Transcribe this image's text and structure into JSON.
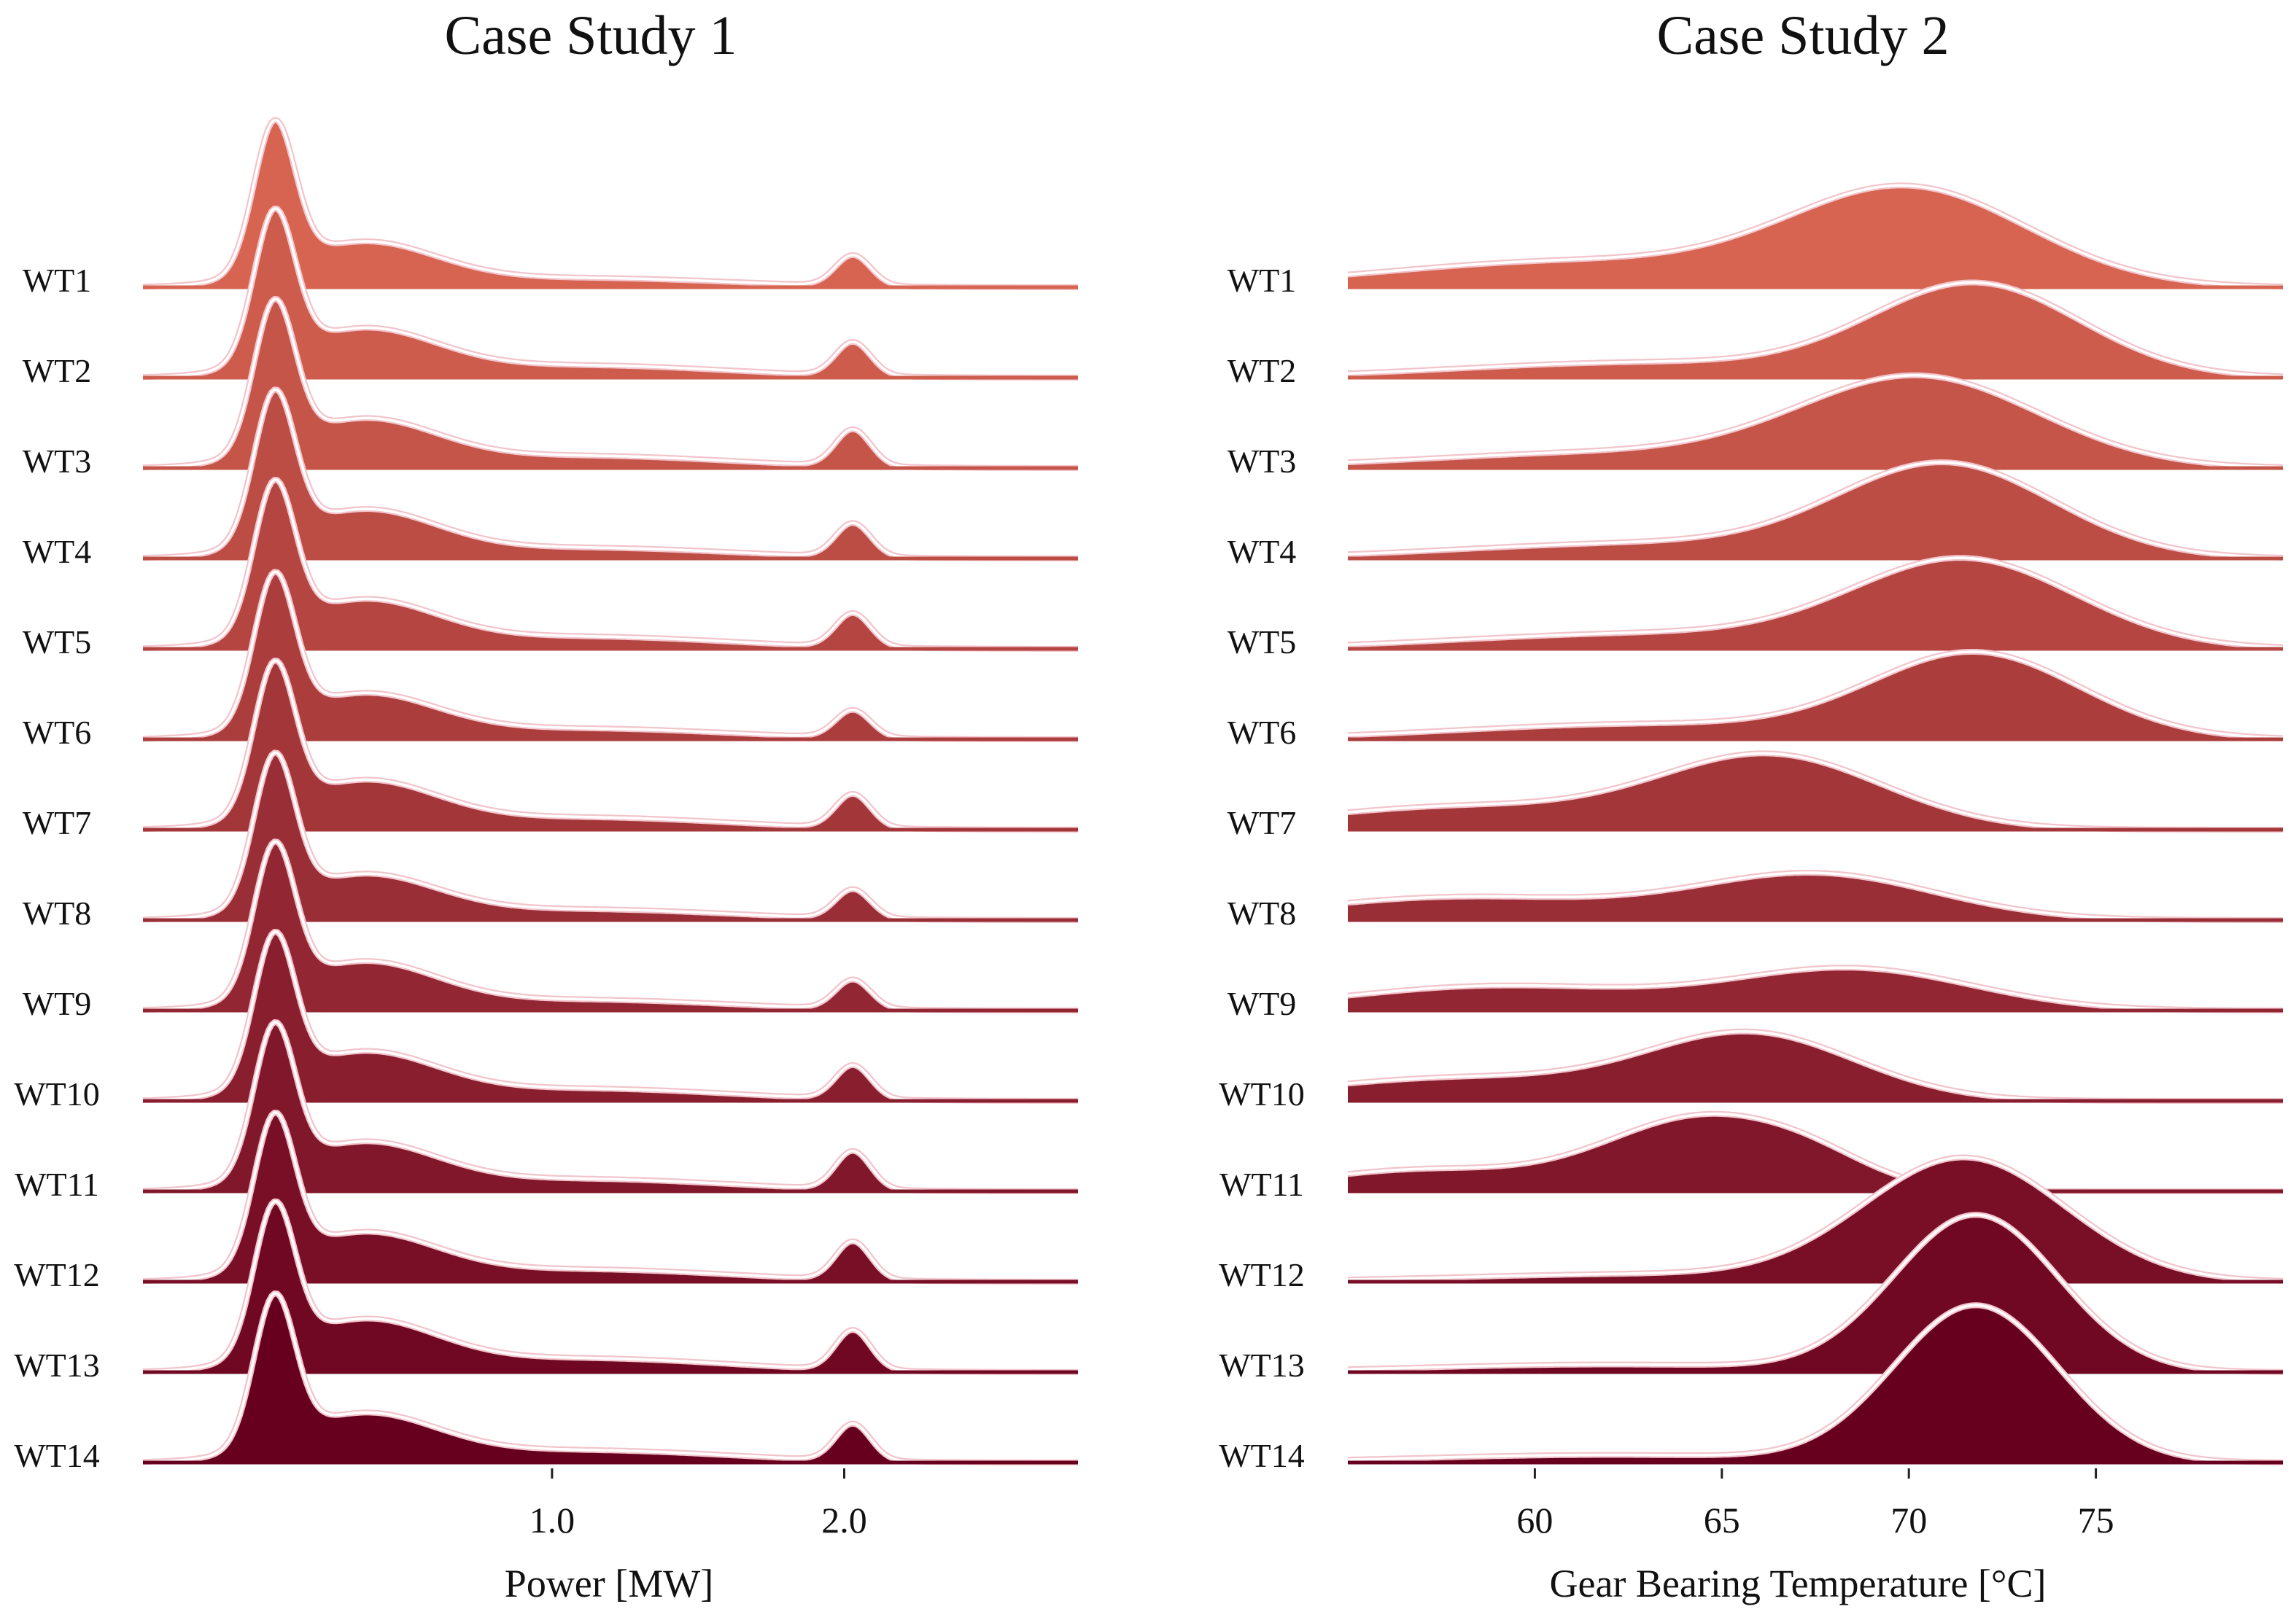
{
  "chart_data": [
    {
      "type": "ridgeline",
      "title": "Case Study 1",
      "xlabel": "Power [MW]",
      "xlim": [
        -0.4,
        2.8
      ],
      "xticks": [
        1.0,
        2.0
      ],
      "xtick_labels": [
        "1.0",
        "2.0"
      ],
      "categories": [
        "WT1",
        "WT2",
        "WT3",
        "WT4",
        "WT5",
        "WT6",
        "WT7",
        "WT8",
        "WT9",
        "WT10",
        "WT11",
        "WT12",
        "WT13",
        "WT14"
      ],
      "series": [
        {
          "name": "WT1",
          "components": [
            {
              "mu": 0.05,
              "sigma": 0.07,
              "w": 0.95
            },
            {
              "mu": 0.35,
              "sigma": 0.25,
              "w": 0.28
            },
            {
              "mu": 1.1,
              "sigma": 0.5,
              "w": 0.06
            },
            {
              "mu": 2.03,
              "sigma": 0.06,
              "w": 0.2
            }
          ]
        },
        {
          "name": "WT2",
          "components": [
            {
              "mu": 0.05,
              "sigma": 0.07,
              "w": 0.95
            },
            {
              "mu": 0.35,
              "sigma": 0.25,
              "w": 0.3
            },
            {
              "mu": 1.1,
              "sigma": 0.5,
              "w": 0.08
            },
            {
              "mu": 2.03,
              "sigma": 0.06,
              "w": 0.22
            }
          ]
        },
        {
          "name": "WT3",
          "components": [
            {
              "mu": 0.05,
              "sigma": 0.07,
              "w": 0.95
            },
            {
              "mu": 0.35,
              "sigma": 0.25,
              "w": 0.3
            },
            {
              "mu": 1.1,
              "sigma": 0.5,
              "w": 0.08
            },
            {
              "mu": 2.03,
              "sigma": 0.06,
              "w": 0.24
            }
          ]
        },
        {
          "name": "WT4",
          "components": [
            {
              "mu": 0.05,
              "sigma": 0.07,
              "w": 0.95
            },
            {
              "mu": 0.35,
              "sigma": 0.25,
              "w": 0.3
            },
            {
              "mu": 1.1,
              "sigma": 0.5,
              "w": 0.07
            },
            {
              "mu": 2.03,
              "sigma": 0.06,
              "w": 0.22
            }
          ]
        },
        {
          "name": "WT5",
          "components": [
            {
              "mu": 0.05,
              "sigma": 0.07,
              "w": 0.95
            },
            {
              "mu": 0.35,
              "sigma": 0.25,
              "w": 0.3
            },
            {
              "mu": 1.1,
              "sigma": 0.5,
              "w": 0.08
            },
            {
              "mu": 2.03,
              "sigma": 0.06,
              "w": 0.22
            }
          ]
        },
        {
          "name": "WT6",
          "components": [
            {
              "mu": 0.05,
              "sigma": 0.07,
              "w": 0.95
            },
            {
              "mu": 0.35,
              "sigma": 0.25,
              "w": 0.28
            },
            {
              "mu": 1.1,
              "sigma": 0.5,
              "w": 0.07
            },
            {
              "mu": 2.03,
              "sigma": 0.06,
              "w": 0.18
            }
          ]
        },
        {
          "name": "WT7",
          "components": [
            {
              "mu": 0.05,
              "sigma": 0.07,
              "w": 0.95
            },
            {
              "mu": 0.35,
              "sigma": 0.25,
              "w": 0.3
            },
            {
              "mu": 1.1,
              "sigma": 0.5,
              "w": 0.08
            },
            {
              "mu": 2.03,
              "sigma": 0.06,
              "w": 0.22
            }
          ]
        },
        {
          "name": "WT8",
          "components": [
            {
              "mu": 0.05,
              "sigma": 0.07,
              "w": 0.95
            },
            {
              "mu": 0.35,
              "sigma": 0.25,
              "w": 0.28
            },
            {
              "mu": 1.1,
              "sigma": 0.5,
              "w": 0.07
            },
            {
              "mu": 2.03,
              "sigma": 0.06,
              "w": 0.19
            }
          ]
        },
        {
          "name": "WT9",
          "components": [
            {
              "mu": 0.05,
              "sigma": 0.07,
              "w": 0.95
            },
            {
              "mu": 0.35,
              "sigma": 0.25,
              "w": 0.3
            },
            {
              "mu": 1.1,
              "sigma": 0.5,
              "w": 0.07
            },
            {
              "mu": 2.03,
              "sigma": 0.06,
              "w": 0.19
            }
          ]
        },
        {
          "name": "WT10",
          "components": [
            {
              "mu": 0.05,
              "sigma": 0.07,
              "w": 0.95
            },
            {
              "mu": 0.35,
              "sigma": 0.25,
              "w": 0.3
            },
            {
              "mu": 1.1,
              "sigma": 0.5,
              "w": 0.08
            },
            {
              "mu": 2.03,
              "sigma": 0.06,
              "w": 0.22
            }
          ]
        },
        {
          "name": "WT11",
          "components": [
            {
              "mu": 0.05,
              "sigma": 0.07,
              "w": 0.95
            },
            {
              "mu": 0.35,
              "sigma": 0.25,
              "w": 0.3
            },
            {
              "mu": 1.1,
              "sigma": 0.5,
              "w": 0.08
            },
            {
              "mu": 2.03,
              "sigma": 0.06,
              "w": 0.25
            }
          ]
        },
        {
          "name": "WT12",
          "components": [
            {
              "mu": 0.05,
              "sigma": 0.07,
              "w": 0.95
            },
            {
              "mu": 0.35,
              "sigma": 0.25,
              "w": 0.3
            },
            {
              "mu": 1.1,
              "sigma": 0.5,
              "w": 0.08
            },
            {
              "mu": 2.03,
              "sigma": 0.06,
              "w": 0.25
            }
          ]
        },
        {
          "name": "WT13",
          "components": [
            {
              "mu": 0.05,
              "sigma": 0.07,
              "w": 0.95
            },
            {
              "mu": 0.35,
              "sigma": 0.25,
              "w": 0.32
            },
            {
              "mu": 1.1,
              "sigma": 0.5,
              "w": 0.09
            },
            {
              "mu": 2.03,
              "sigma": 0.06,
              "w": 0.26
            }
          ]
        },
        {
          "name": "WT14",
          "components": [
            {
              "mu": 0.05,
              "sigma": 0.07,
              "w": 0.95
            },
            {
              "mu": 0.35,
              "sigma": 0.25,
              "w": 0.3
            },
            {
              "mu": 1.1,
              "sigma": 0.5,
              "w": 0.08
            },
            {
              "mu": 2.03,
              "sigma": 0.06,
              "w": 0.24
            }
          ]
        }
      ],
      "colors": {
        "top": "#d66450",
        "bottom": "#67001f",
        "outline": "#f2c4cc"
      }
    },
    {
      "type": "ridgeline",
      "title": "Case Study 2",
      "xlabel": "Gear Bearing Temperature [°C]",
      "xlim": [
        55,
        80
      ],
      "xticks": [
        60,
        65,
        70,
        75
      ],
      "xtick_labels": [
        "60",
        "65",
        "70",
        "75"
      ],
      "categories": [
        "WT1",
        "WT2",
        "WT3",
        "WT4",
        "WT5",
        "WT6",
        "WT7",
        "WT8",
        "WT9",
        "WT10",
        "WT11",
        "WT12",
        "WT13",
        "WT14"
      ],
      "series": [
        {
          "name": "WT1",
          "components": [
            {
              "mu": 70.0,
              "sigma": 3.2,
              "w": 0.63
            },
            {
              "mu": 61.0,
              "sigma": 5.0,
              "w": 0.17
            }
          ]
        },
        {
          "name": "WT2",
          "components": [
            {
              "mu": 71.8,
              "sigma": 2.8,
              "w": 0.6
            },
            {
              "mu": 63.0,
              "sigma": 5.0,
              "w": 0.1
            }
          ]
        },
        {
          "name": "WT3",
          "components": [
            {
              "mu": 70.3,
              "sigma": 3.2,
              "w": 0.58
            },
            {
              "mu": 62.0,
              "sigma": 5.0,
              "w": 0.1
            }
          ]
        },
        {
          "name": "WT4",
          "components": [
            {
              "mu": 71.0,
              "sigma": 2.9,
              "w": 0.6
            },
            {
              "mu": 63.0,
              "sigma": 5.0,
              "w": 0.1
            }
          ]
        },
        {
          "name": "WT5",
          "components": [
            {
              "mu": 71.5,
              "sigma": 3.0,
              "w": 0.57
            },
            {
              "mu": 63.0,
              "sigma": 5.0,
              "w": 0.1
            }
          ]
        },
        {
          "name": "WT6",
          "components": [
            {
              "mu": 71.8,
              "sigma": 2.8,
              "w": 0.55
            },
            {
              "mu": 63.0,
              "sigma": 5.0,
              "w": 0.1
            }
          ]
        },
        {
          "name": "WT7",
          "components": [
            {
              "mu": 66.3,
              "sigma": 3.0,
              "w": 0.48
            },
            {
              "mu": 58.0,
              "sigma": 4.0,
              "w": 0.15
            }
          ]
        },
        {
          "name": "WT8",
          "components": [
            {
              "mu": 67.5,
              "sigma": 3.2,
              "w": 0.3
            },
            {
              "mu": 58.0,
              "sigma": 4.0,
              "w": 0.15
            }
          ]
        },
        {
          "name": "WT9",
          "components": [
            {
              "mu": 68.5,
              "sigma": 3.2,
              "w": 0.27
            },
            {
              "mu": 59.0,
              "sigma": 4.0,
              "w": 0.16
            }
          ]
        },
        {
          "name": "WT10",
          "components": [
            {
              "mu": 65.8,
              "sigma": 2.8,
              "w": 0.43
            },
            {
              "mu": 58.0,
              "sigma": 4.0,
              "w": 0.15
            }
          ]
        },
        {
          "name": "WT11",
          "components": [
            {
              "mu": 64.5,
              "sigma": 2.6,
              "w": 0.48
            },
            {
              "mu": 67.5,
              "sigma": 1.6,
              "w": 0.1
            },
            {
              "mu": 57.0,
              "sigma": 3.0,
              "w": 0.14
            }
          ]
        },
        {
          "name": "WT12",
          "components": [
            {
              "mu": 71.5,
              "sigma": 2.7,
              "w": 0.8
            },
            {
              "mu": 63.0,
              "sigma": 5.0,
              "w": 0.05
            }
          ]
        },
        {
          "name": "WT13",
          "components": [
            {
              "mu": 71.8,
              "sigma": 2.2,
              "w": 1.02
            },
            {
              "mu": 62.0,
              "sigma": 5.0,
              "w": 0.05
            }
          ]
        },
        {
          "name": "WT14",
          "components": [
            {
              "mu": 71.8,
              "sigma": 2.2,
              "w": 1.02
            },
            {
              "mu": 62.0,
              "sigma": 5.0,
              "w": 0.05
            }
          ]
        }
      ],
      "colors": {
        "top": "#d66450",
        "bottom": "#67001f",
        "outline": "#f2c4cc"
      }
    }
  ]
}
